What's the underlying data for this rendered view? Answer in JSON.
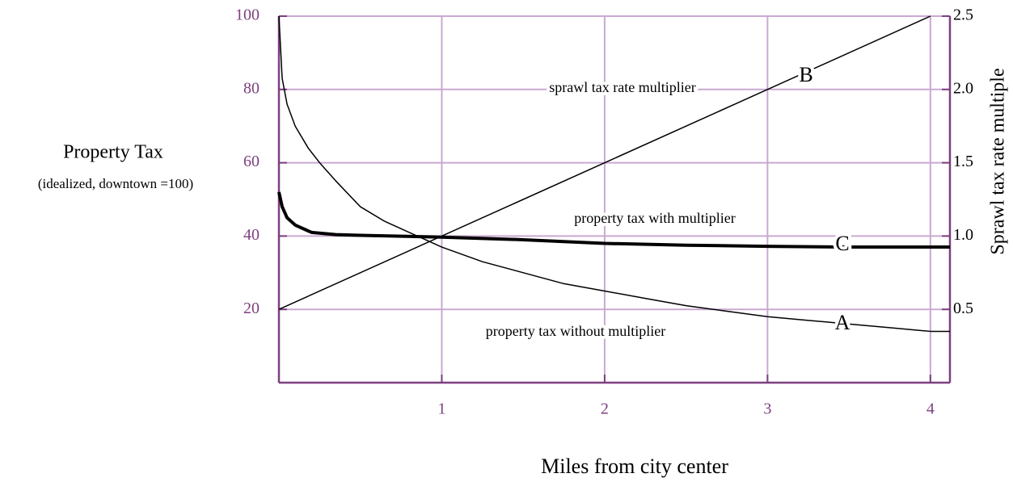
{
  "chart_data": {
    "type": "line",
    "y_label": "Property Tax",
    "y_sublabel": "(idealized, downtown =100)",
    "x_label": "Miles from city center",
    "y2_label": "Sprawl tax rate multiple",
    "annotations": [
      "sprawl tax rate multiplier",
      "property tax with multiplier",
      "property tax without multiplier"
    ],
    "xlim": [
      0,
      4.12
    ],
    "xticks": [
      1,
      2,
      3,
      4
    ],
    "ylim": [
      0,
      100
    ],
    "yticks": [
      20,
      40,
      60,
      80,
      100
    ],
    "y2lim": [
      0,
      2.5
    ],
    "y2ticks": [
      0.5,
      {
        "value": 1,
        "label": "1.0"
      },
      1.5,
      {
        "value": 2,
        "label": "2.0"
      },
      2.5
    ],
    "grid": true,
    "series": [
      {
        "name": "A",
        "color": "#000000",
        "width": 1.5,
        "x": [
          0,
          0.02,
          0.05,
          0.1,
          0.18,
          0.25,
          0.35,
          0.5,
          0.65,
          0.75,
          0.9,
          1,
          1.25,
          1.5,
          1.75,
          2,
          2.25,
          2.5,
          2.75,
          3,
          3.25,
          3.5,
          3.75,
          4,
          4.12
        ],
        "values": [
          100,
          83,
          76,
          70,
          64,
          60,
          55,
          48,
          44,
          42,
          39,
          37,
          33,
          30,
          27,
          25,
          23,
          21,
          19.5,
          18,
          17,
          16,
          15,
          14,
          14
        ]
      },
      {
        "name": "B",
        "color": "#000000",
        "width": 1.5,
        "axis": "y2",
        "x": [
          0,
          4
        ],
        "values": [
          0.5,
          2.5
        ]
      },
      {
        "name": "C",
        "color": "#000000",
        "width": 4,
        "x": [
          0,
          0.02,
          0.05,
          0.1,
          0.2,
          0.35,
          0.5,
          1,
          1.5,
          2,
          2.5,
          3,
          3.5,
          4.12
        ],
        "values": [
          52,
          48,
          45,
          43,
          41,
          40.4,
          40.2,
          39.7,
          39,
          38,
          37.5,
          37.2,
          37,
          37
        ]
      }
    ]
  }
}
